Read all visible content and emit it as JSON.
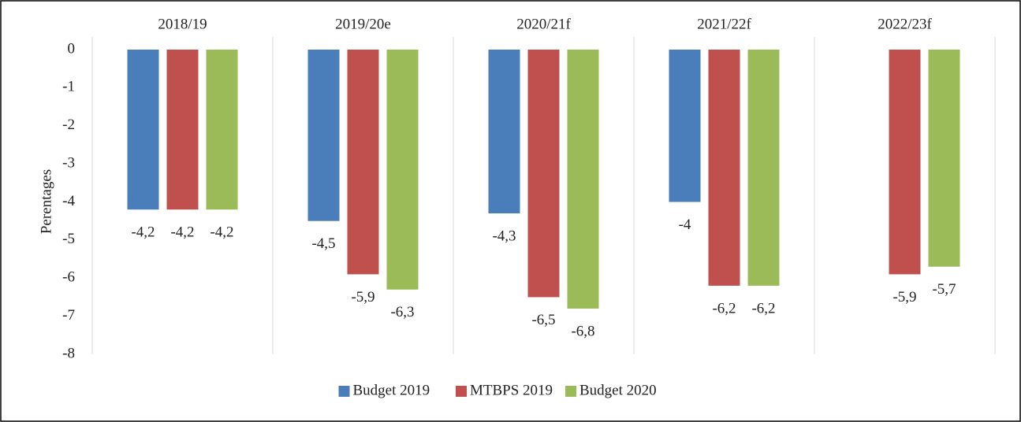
{
  "chart_data": {
    "type": "bar",
    "y_label": "Perentages",
    "categories": [
      "2018/19",
      "2019/20e",
      "2020/21f",
      "2021/22f",
      "2022/23f"
    ],
    "series": [
      {
        "name": "Budget 2019",
        "color": "#4a7ebb",
        "values": [
          -4.2,
          -4.5,
          -4.3,
          -4,
          null
        ],
        "value_labels": [
          "-4,2",
          "-4,5",
          "-4,3",
          "-4",
          null
        ]
      },
      {
        "name": "MTBPS 2019",
        "color": "#c0504d",
        "values": [
          -4.2,
          -5.9,
          -6.5,
          -6.2,
          -5.9
        ],
        "value_labels": [
          "-4,2",
          "-5,9",
          "-6,5",
          "-6,2",
          "-5,9"
        ]
      },
      {
        "name": "Budget 2020",
        "color": "#9bbb59",
        "values": [
          -4.2,
          -6.3,
          -6.8,
          -6.2,
          -5.7
        ],
        "value_labels": [
          "-4,2",
          "-6,3",
          "-6,8",
          "-6,2",
          "-5,7"
        ]
      }
    ],
    "ylim": [
      -8,
      0
    ],
    "yticks": [
      0,
      -1,
      -2,
      -3,
      -4,
      -5,
      -6,
      -7,
      -8
    ],
    "legend": "bottom"
  }
}
